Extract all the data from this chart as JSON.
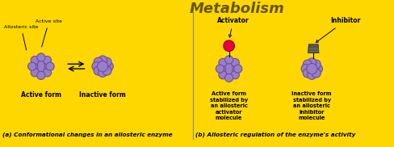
{
  "bg_color": "#FFD700",
  "enzyme_color": "#9B7EC8",
  "enzyme_edge_color": "#6B4EA0",
  "activator_color": "#E8003D",
  "inhibitor_color": "#555555",
  "text_color": "#000000",
  "divider_color": "#888888",
  "label_a": "(a) Conformational changes in an allosteric enzyme",
  "label_b": "(b) Allosteric regulation of the enzyme's activity",
  "label_active_form": "Active form",
  "label_inactive_form": "Inactive form",
  "label_allosteric_site": "Allosteric site",
  "label_active_site": "Active site",
  "label_activator": "Activator",
  "label_inhibitor": "Inhibitor",
  "label_active_stab": "Active form\nstabilized by\nan allosteric\nactivator\nmolecule",
  "label_inactive_stab": "Inactive form\nstabilized by\nan allosteric\ninhibitor\nmolecule",
  "watermark": "Metabolism"
}
